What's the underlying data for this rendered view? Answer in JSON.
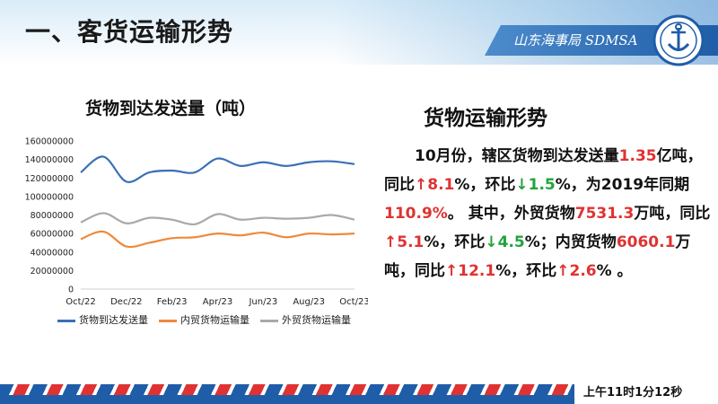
{
  "header": {
    "title": "一、客货运输形势",
    "brand": "山东海事局 SDMSA"
  },
  "logo": {
    "icon": "anchor-emblem-icon"
  },
  "chart_data": {
    "type": "line",
    "title": "货物到达发送量（吨）",
    "categories": [
      "Oct/22",
      "Nov/22",
      "Dec/22",
      "Jan/23",
      "Feb/23",
      "Mar/23",
      "Apr/23",
      "May/23",
      "Jun/23",
      "Jul/23",
      "Aug/23",
      "Sep/23",
      "Oct/23"
    ],
    "tick_labels": [
      "Oct/22",
      "Dec/22",
      "Feb/23",
      "Apr/23",
      "Jun/23",
      "Aug/23",
      "Oct/23"
    ],
    "y_ticks": [
      "0",
      "20000000",
      "40000000",
      "60000000",
      "80000000",
      "100000000",
      "120000000",
      "140000000",
      "160000000"
    ],
    "ylim": [
      0,
      160000000
    ],
    "series": [
      {
        "name": "货物到达发送量",
        "color": "#3b6fb6",
        "values": [
          126000000,
          143000000,
          116000000,
          126000000,
          128000000,
          126000000,
          141000000,
          133000000,
          137000000,
          133000000,
          137000000,
          138000000,
          135000000
        ]
      },
      {
        "name": "内贸货物运输量",
        "color": "#ee8a3c",
        "values": [
          54000000,
          62000000,
          46000000,
          50000000,
          55000000,
          56000000,
          60000000,
          58000000,
          61000000,
          56000000,
          60000000,
          59000000,
          60000000
        ]
      },
      {
        "name": "外贸货物运输量",
        "color": "#a9a9a9",
        "values": [
          72000000,
          82000000,
          71000000,
          77000000,
          75000000,
          70000000,
          81000000,
          75000000,
          77000000,
          76000000,
          77000000,
          80000000,
          75000000
        ]
      }
    ],
    "legend_position": "bottom",
    "grid": false
  },
  "panel": {
    "title": "货物运输形势",
    "segments": [
      {
        "t": "10月份，辖区货物到达发送量",
        "c": ""
      },
      {
        "t": "1.35",
        "c": "red"
      },
      {
        "t": "亿吨，同比",
        "c": ""
      },
      {
        "t": "↑8.1",
        "c": "red"
      },
      {
        "t": "%，环比",
        "c": ""
      },
      {
        "t": "↓1.5",
        "c": "green"
      },
      {
        "t": "%，为2019年同期",
        "c": ""
      },
      {
        "t": "110.9%",
        "c": "red"
      },
      {
        "t": "。 其中，外贸货物",
        "c": ""
      },
      {
        "t": "7531.3",
        "c": "red"
      },
      {
        "t": "万吨，同比",
        "c": ""
      },
      {
        "t": "↑5.1",
        "c": "red"
      },
      {
        "t": "%，环比",
        "c": ""
      },
      {
        "t": "↓4.5",
        "c": "green"
      },
      {
        "t": "%；内贸货物",
        "c": ""
      },
      {
        "t": "6060.1",
        "c": "red"
      },
      {
        "t": "万吨，同比",
        "c": ""
      },
      {
        "t": "↑12.1",
        "c": "red"
      },
      {
        "t": "%，环比",
        "c": ""
      },
      {
        "t": "↑2.6",
        "c": "red"
      },
      {
        "t": "% 。",
        "c": ""
      }
    ]
  },
  "footer": {
    "time": "上午11时1分12秒"
  }
}
